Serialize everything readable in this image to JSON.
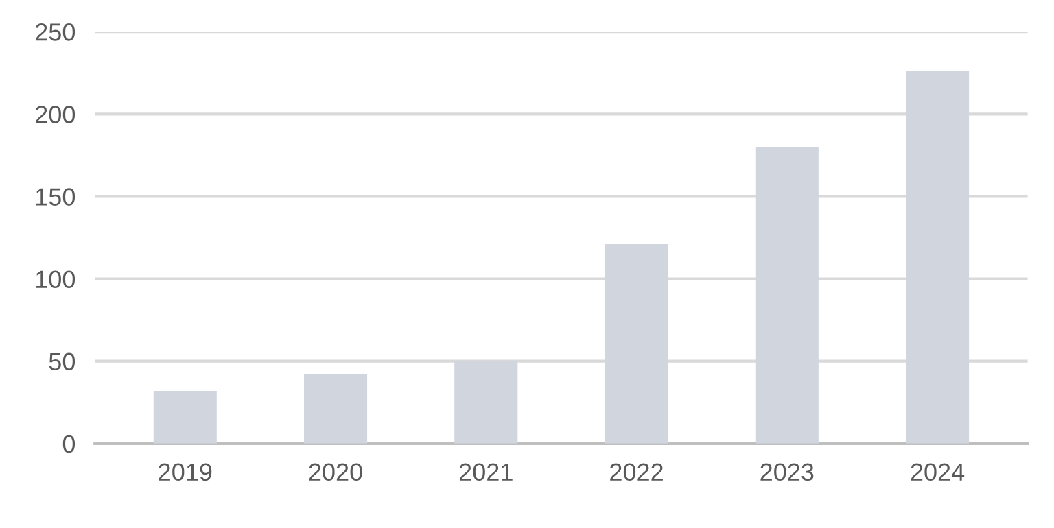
{
  "chart_data": {
    "type": "bar",
    "categories": [
      "2019",
      "2020",
      "2021",
      "2022",
      "2023",
      "2024"
    ],
    "values": [
      32,
      42,
      50,
      121,
      180,
      226
    ],
    "color": "#d0d5de",
    "ylim": [
      0,
      250
    ],
    "yticks": [
      0,
      50,
      100,
      150,
      200,
      250
    ],
    "grid": "y"
  }
}
